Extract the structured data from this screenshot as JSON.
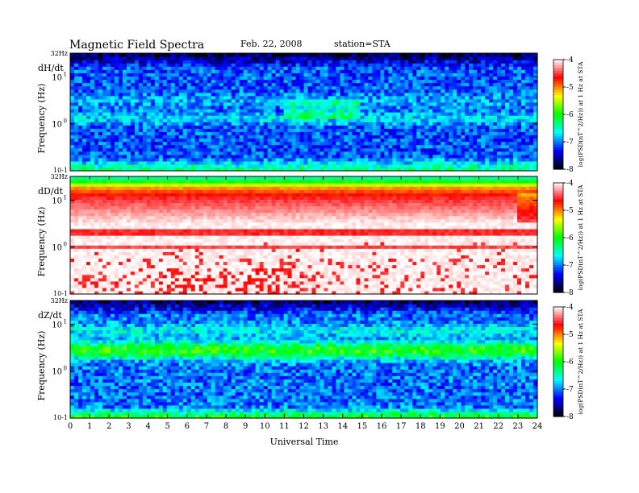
{
  "header": {
    "title": "Magnetic  Field  Spectra",
    "date": "Feb. 22, 2008",
    "station": "station=STA"
  },
  "chart_data": {
    "type": "heatmap",
    "xlabel": "Universal Time",
    "xlim": [
      0,
      24
    ],
    "x_ticks": [
      "0",
      "1",
      "2",
      "3",
      "4",
      "5",
      "6",
      "7",
      "8",
      "9",
      "10",
      "11",
      "12",
      "13",
      "14",
      "15",
      "16",
      "17",
      "18",
      "19",
      "20",
      "21",
      "22",
      "23",
      "24"
    ],
    "y_scale": "log",
    "ylim_hz": [
      0.1,
      32
    ],
    "y_tick_labels": {
      "top": "32Hz",
      "ten": "10",
      "one": "10",
      "tenth": "10-1"
    },
    "y_exp": {
      "ten": "1",
      "one": "0"
    },
    "colorbar": {
      "range": [
        -8,
        -4
      ],
      "ticks": [
        "-4",
        "-5",
        "-6",
        "-7",
        "-8"
      ],
      "label": "log(PSD(nT^2/Hz)) at 1 Hz at STA",
      "colors": [
        "#000000",
        "#0000ff",
        "#00ffff",
        "#00ff00",
        "#ffff00",
        "#ff0000",
        "#ffffff"
      ]
    },
    "panels": [
      {
        "name": "dH/dt",
        "ylabel": "Frequency  (Hz)",
        "profile": "weak"
      },
      {
        "name": "dD/dt",
        "ylabel": "Frequency  (Hz)",
        "profile": "strong"
      },
      {
        "name": "dZ/dt",
        "ylabel": "Frequency  (Hz)",
        "profile": "mid"
      }
    ]
  }
}
